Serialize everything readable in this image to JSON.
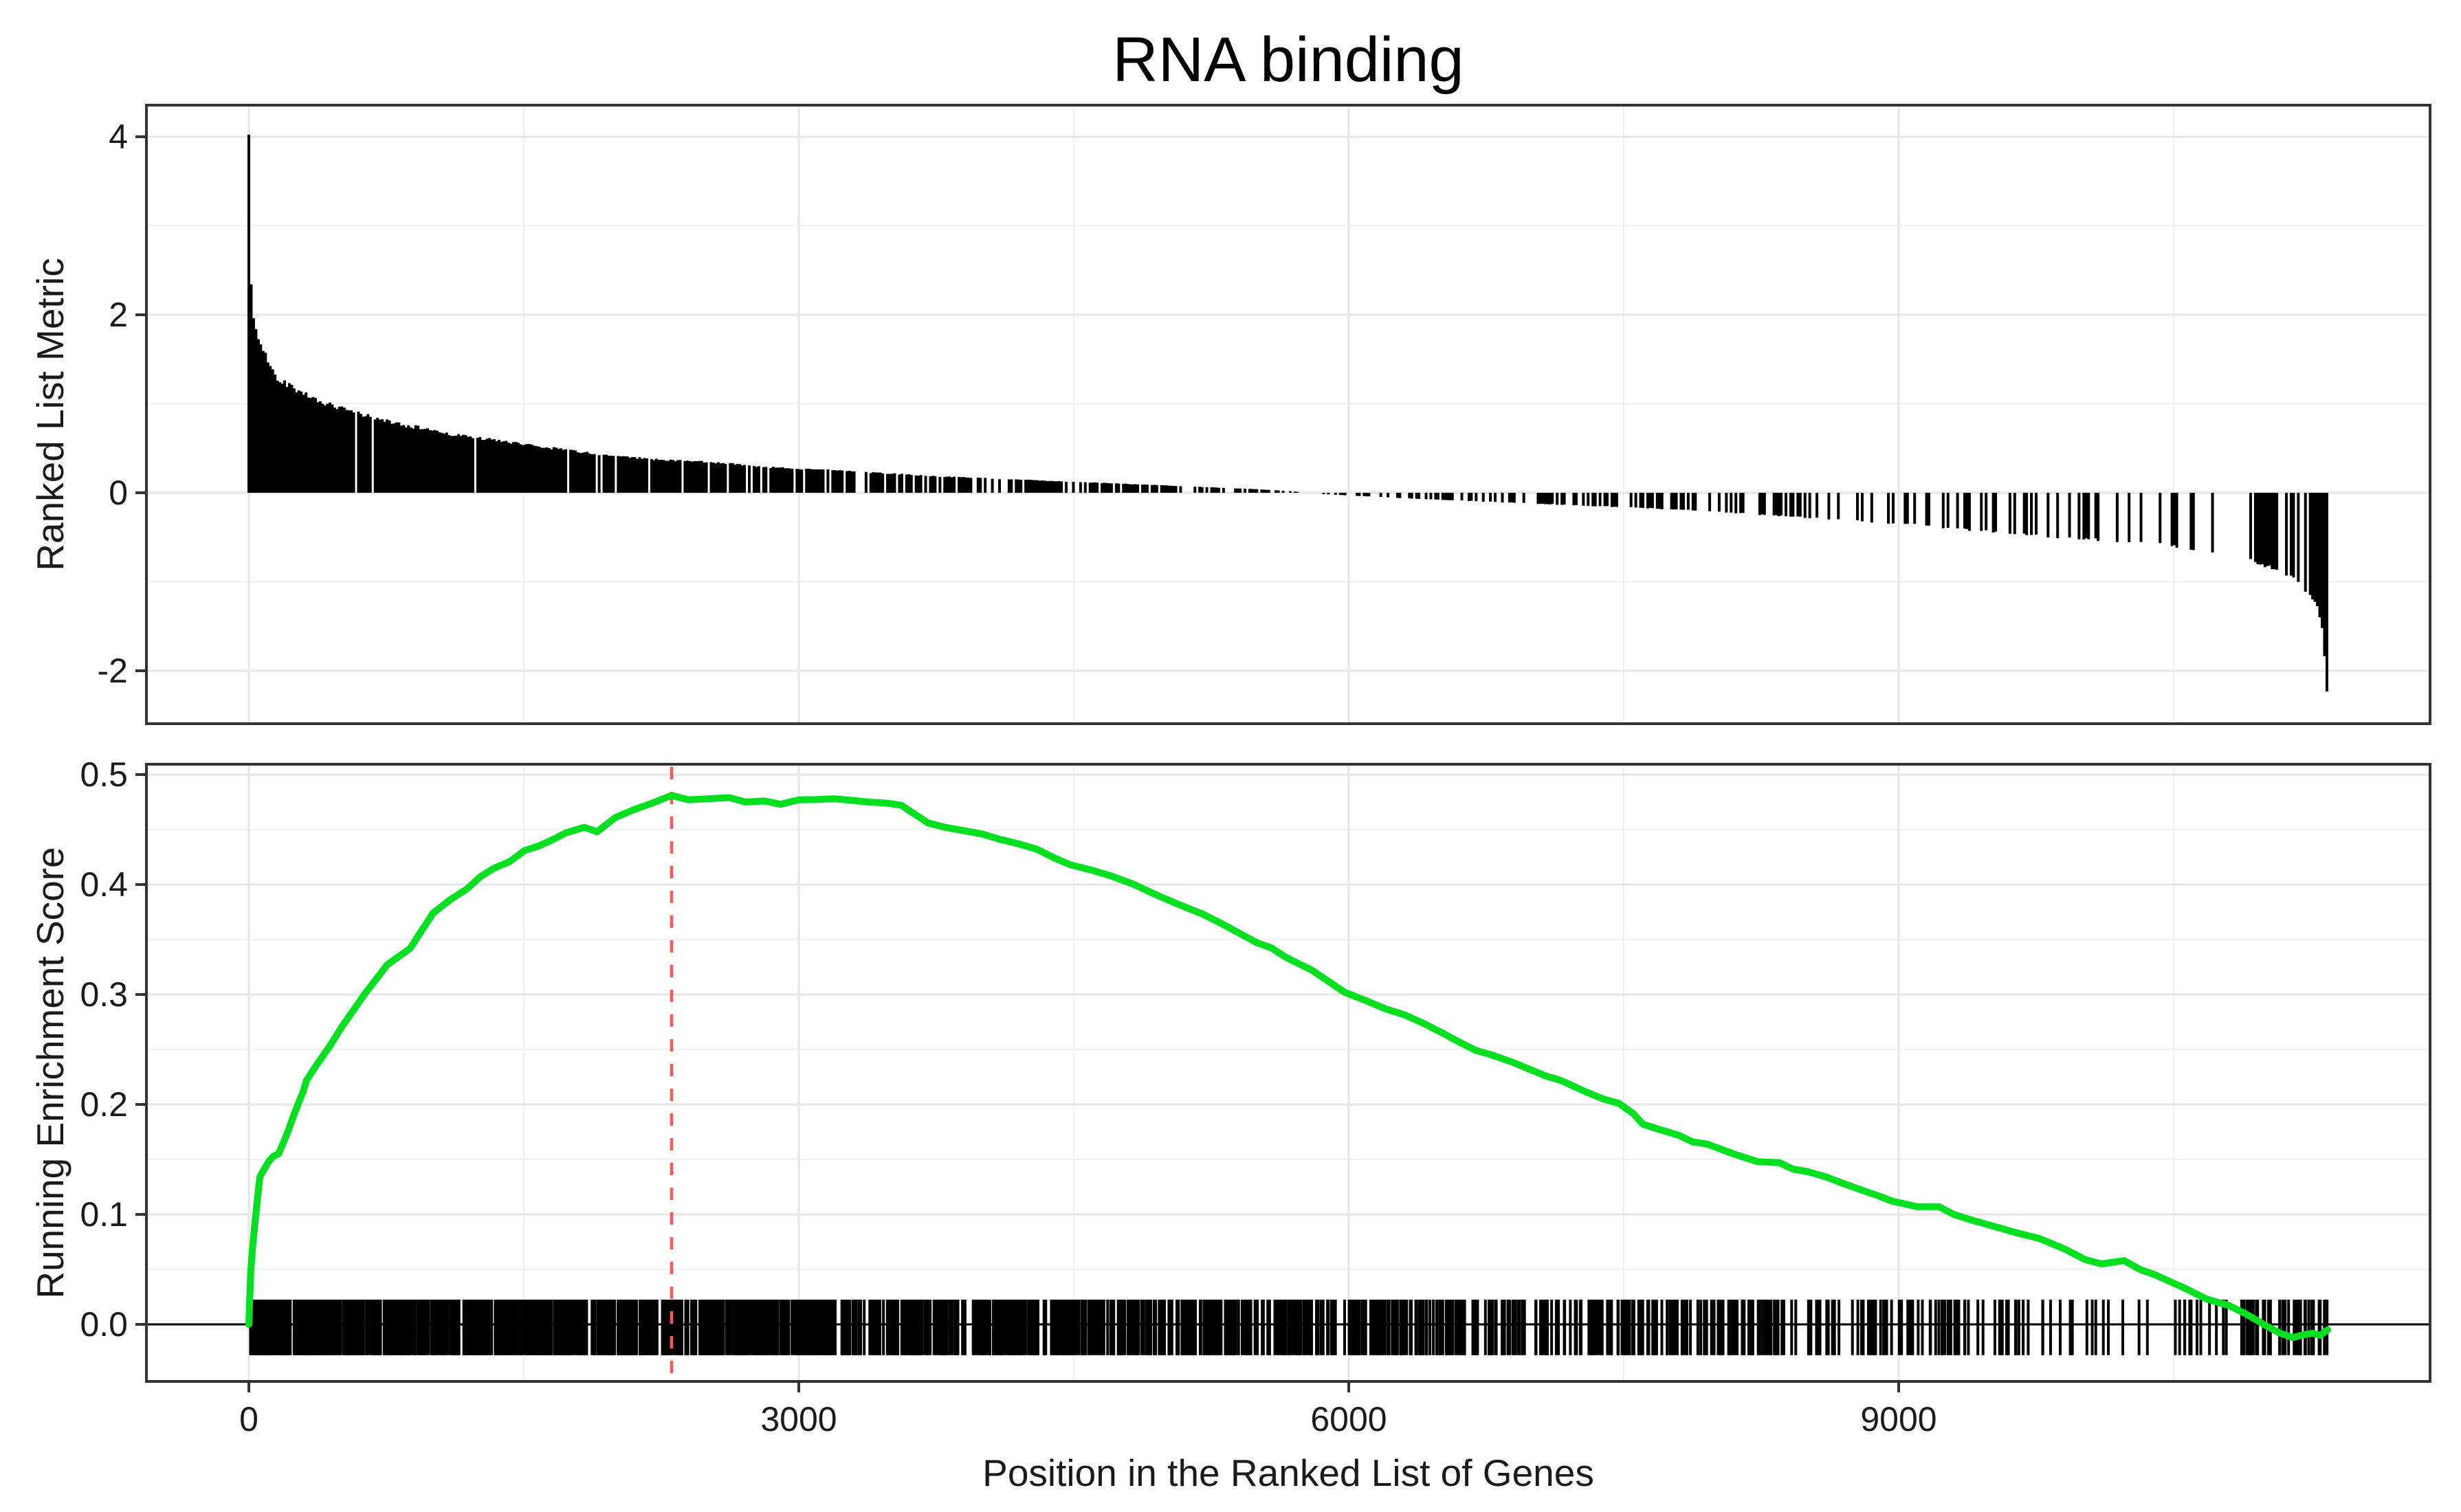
{
  "title": "RNA binding",
  "axes": {
    "x_title": "Position in the Ranked List of Genes",
    "xticks": [
      {
        "label": "0",
        "value": 0
      },
      {
        "label": "3000",
        "value": 3000
      },
      {
        "label": "6000",
        "value": 6000
      },
      {
        "label": "9000",
        "value": 9000
      }
    ],
    "top_y_title": "Ranked List Metric",
    "top_yticks": [
      {
        "label": "4",
        "value": 4
      },
      {
        "label": "2",
        "value": 2
      },
      {
        "label": "0",
        "value": 0
      },
      {
        "label": "-2",
        "value": -2
      }
    ],
    "bottom_y_title": "Running Enrichment Score",
    "bottom_yticks": [
      {
        "label": "0.5",
        "value": 0.5
      },
      {
        "label": "0.4",
        "value": 0.4
      },
      {
        "label": "0.3",
        "value": 0.3
      },
      {
        "label": "0.2",
        "value": 0.2
      },
      {
        "label": "0.1",
        "value": 0.1
      },
      {
        "label": "0.0",
        "value": 0.0
      }
    ]
  },
  "colors": {
    "es_line": "#00E020",
    "peak_line": "#F65B5B",
    "bars": "#000000",
    "rug": "#000000",
    "zero_line": "#000000",
    "grid_major": "#E8E8E8",
    "grid_minor": "#F0F0F0",
    "panel_border": "#333333",
    "tick_mark": "#333333",
    "background": "#FFFFFF"
  },
  "chart_data": {
    "type": "line",
    "title": "RNA binding",
    "xlabel": "Position in the Ranked List of Genes",
    "grid": true,
    "legend": false,
    "x_range": [
      0,
      11340
    ],
    "xlim": [
      -560,
      11900
    ],
    "xticks": [
      0,
      3000,
      6000,
      9000
    ],
    "x_minor_ticks": [
      1500,
      4500,
      7500,
      10500
    ],
    "panels": [
      {
        "name": "ranked_list_metric",
        "type": "bar",
        "ylabel": "Ranked List Metric",
        "ylim": [
          -2.6,
          4.35
        ],
        "yticks": [
          4,
          2,
          0,
          -2
        ],
        "y_minor_ticks": [
          3,
          1,
          -1
        ],
        "metric_zero_cross_position": 5770,
        "metric_envelope": [
          [
            0,
            4
          ],
          [
            4,
            3.1
          ],
          [
            9,
            2.55
          ],
          [
            16,
            2.2
          ],
          [
            26,
            1.92
          ],
          [
            55,
            1.7
          ],
          [
            86,
            1.56
          ],
          [
            118,
            1.42
          ],
          [
            152,
            1.3
          ],
          [
            218,
            1.21
          ],
          [
            293,
            1.12
          ],
          [
            368,
            1.05
          ],
          [
            492,
            0.95
          ],
          [
            618,
            0.88
          ],
          [
            743,
            0.81
          ],
          [
            868,
            0.75
          ],
          [
            993,
            0.71
          ],
          [
            1118,
            0.65
          ],
          [
            1243,
            0.62
          ],
          [
            1368,
            0.58
          ],
          [
            1493,
            0.55
          ],
          [
            1618,
            0.51
          ],
          [
            1743,
            0.48
          ],
          [
            1898,
            0.43
          ],
          [
            2055,
            0.4
          ],
          [
            2243,
            0.37
          ],
          [
            2430,
            0.355
          ],
          [
            2618,
            0.33
          ],
          [
            2805,
            0.29
          ],
          [
            2993,
            0.27
          ],
          [
            3180,
            0.255
          ],
          [
            3368,
            0.23
          ],
          [
            3555,
            0.21
          ],
          [
            3705,
            0.19
          ],
          [
            4000,
            0.165
          ],
          [
            4300,
            0.14
          ],
          [
            4600,
            0.115
          ],
          [
            4900,
            0.09
          ],
          [
            5200,
            0.065
          ],
          [
            5500,
            0.04
          ],
          [
            5700,
            0.015
          ],
          [
            5770,
            0
          ],
          [
            5860,
            -0.015
          ],
          [
            6100,
            -0.04
          ],
          [
            6400,
            -0.07
          ],
          [
            6700,
            -0.095
          ],
          [
            7000,
            -0.12
          ],
          [
            7300,
            -0.145
          ],
          [
            7600,
            -0.17
          ],
          [
            7900,
            -0.2
          ],
          [
            8200,
            -0.24
          ],
          [
            8500,
            -0.28
          ],
          [
            8800,
            -0.32
          ],
          [
            9100,
            -0.36
          ],
          [
            9400,
            -0.42
          ],
          [
            9700,
            -0.47
          ],
          [
            10000,
            -0.52
          ],
          [
            10300,
            -0.55
          ],
          [
            10500,
            -0.6
          ],
          [
            10700,
            -0.66
          ],
          [
            10900,
            -0.74
          ],
          [
            11050,
            -0.86
          ],
          [
            11130,
            -0.93
          ],
          [
            11200,
            -1.05
          ],
          [
            11240,
            -1.12
          ],
          [
            11280,
            -1.25
          ],
          [
            11310,
            -1.55
          ],
          [
            11330,
            -1.95
          ],
          [
            11340,
            -2.35
          ]
        ]
      },
      {
        "name": "running_enrichment_score",
        "type": "line",
        "ylabel": "Running Enrichment Score",
        "ylim": [
          -0.056,
          0.51
        ],
        "yticks": [
          0.5,
          0.4,
          0.3,
          0.2,
          0.1,
          0.0
        ],
        "y_minor_ticks": [
          0.45,
          0.35,
          0.25,
          0.15,
          0.05
        ],
        "peak": {
          "position": 2306,
          "es": 0.481
        },
        "peak_line_style": "dashed",
        "es_curve": [
          [
            0,
            0
          ],
          [
            10,
            0.048
          ],
          [
            20,
            0.069
          ],
          [
            32,
            0.09
          ],
          [
            45,
            0.111
          ],
          [
            60,
            0.134
          ],
          [
            90,
            0.143
          ],
          [
            112,
            0.149
          ],
          [
            135,
            0.153
          ],
          [
            162,
            0.155
          ],
          [
            190,
            0.166
          ],
          [
            210,
            0.174
          ],
          [
            245,
            0.19
          ],
          [
            275,
            0.203
          ],
          [
            295,
            0.211
          ],
          [
            315,
            0.222
          ],
          [
            370,
            0.236
          ],
          [
            445,
            0.254
          ],
          [
            505,
            0.27
          ],
          [
            630,
            0.3
          ],
          [
            755,
            0.327
          ],
          [
            880,
            0.342
          ],
          [
            1005,
            0.374
          ],
          [
            1190,
            0.396
          ],
          [
            1340,
            0.415
          ],
          [
            1505,
            0.431
          ],
          [
            1660,
            0.441
          ],
          [
            1730,
            0.447
          ],
          [
            1830,
            0.452
          ],
          [
            1900,
            0.448
          ],
          [
            2000,
            0.461
          ],
          [
            2100,
            0.468
          ],
          [
            2200,
            0.474
          ],
          [
            2306,
            0.481
          ],
          [
            2400,
            0.477
          ],
          [
            2500,
            0.478
          ],
          [
            2620,
            0.479
          ],
          [
            2710,
            0.475
          ],
          [
            2810,
            0.476
          ],
          [
            2900,
            0.473
          ],
          [
            3000,
            0.477
          ],
          [
            3190,
            0.478
          ],
          [
            3380,
            0.475
          ],
          [
            3480,
            0.474
          ],
          [
            3560,
            0.472
          ],
          [
            3705,
            0.456
          ],
          [
            3800,
            0.452
          ],
          [
            3900,
            0.449
          ],
          [
            4000,
            0.446
          ],
          [
            4100,
            0.441
          ],
          [
            4200,
            0.437
          ],
          [
            4300,
            0.432
          ],
          [
            4480,
            0.418
          ],
          [
            4600,
            0.413
          ],
          [
            4700,
            0.408
          ],
          [
            4830,
            0.4
          ],
          [
            5000,
            0.387
          ],
          [
            5100,
            0.38
          ],
          [
            5205,
            0.373
          ],
          [
            5300,
            0.365
          ],
          [
            5400,
            0.356
          ],
          [
            5500,
            0.347
          ],
          [
            5655,
            0.334
          ],
          [
            5800,
            0.322
          ],
          [
            5978,
            0.302
          ],
          [
            6100,
            0.294
          ],
          [
            6200,
            0.287
          ],
          [
            6405,
            0.274
          ],
          [
            6500,
            0.266
          ],
          [
            6600,
            0.257
          ],
          [
            6780,
            0.245
          ],
          [
            6900,
            0.238
          ],
          [
            7000,
            0.231
          ],
          [
            7155,
            0.222
          ],
          [
            7300,
            0.211
          ],
          [
            7474,
            0.201
          ],
          [
            7550,
            0.192
          ],
          [
            7605,
            0.182
          ],
          [
            7700,
            0.177
          ],
          [
            7800,
            0.172
          ],
          [
            7954,
            0.164
          ],
          [
            8100,
            0.155
          ],
          [
            8230,
            0.148
          ],
          [
            8350,
            0.147
          ],
          [
            8500,
            0.139
          ],
          [
            8606,
            0.134
          ],
          [
            8700,
            0.128
          ],
          [
            8800,
            0.122
          ],
          [
            8966,
            0.112
          ],
          [
            9100,
            0.107
          ],
          [
            9220,
            0.107
          ],
          [
            9300,
            0.1
          ],
          [
            9416,
            0.094
          ],
          [
            9544,
            0.088
          ],
          [
            9650,
            0.083
          ],
          [
            9769,
            0.078
          ],
          [
            9900,
            0.069
          ],
          [
            10016,
            0.059
          ],
          [
            10106,
            0.055
          ],
          [
            10230,
            0.058
          ],
          [
            10316,
            0.05
          ],
          [
            10400,
            0.045
          ],
          [
            10466,
            0.04
          ],
          [
            10560,
            0.033
          ],
          [
            10680,
            0.023
          ],
          [
            10804,
            0.017
          ],
          [
            10900,
            0.009
          ],
          [
            10991,
            0
          ],
          [
            11080,
            -0.008
          ],
          [
            11150,
            -0.012
          ],
          [
            11220,
            -0.009
          ],
          [
            11260,
            -0.008
          ],
          [
            11300,
            -0.01
          ],
          [
            11330,
            -0.006
          ],
          [
            11340,
            -0.005
          ]
        ],
        "rug_es_extent": [
          0.0225,
          -0.028
        ],
        "rug_segments": [
          [
            0,
            300,
            100
          ],
          [
            300,
            800,
            135
          ],
          [
            800,
            1500,
            175
          ],
          [
            1500,
            2300,
            185
          ],
          [
            2300,
            3000,
            150
          ],
          [
            3000,
            3800,
            150
          ],
          [
            3800,
            4600,
            135
          ],
          [
            4600,
            5400,
            115
          ],
          [
            5400,
            6200,
            95
          ],
          [
            6200,
            7000,
            80
          ],
          [
            7000,
            7800,
            70
          ],
          [
            7800,
            8600,
            65
          ],
          [
            8600,
            9400,
            48
          ],
          [
            9400,
            10200,
            26
          ],
          [
            10200,
            10850,
            16
          ],
          [
            10850,
            11340,
            40
          ]
        ]
      }
    ]
  }
}
